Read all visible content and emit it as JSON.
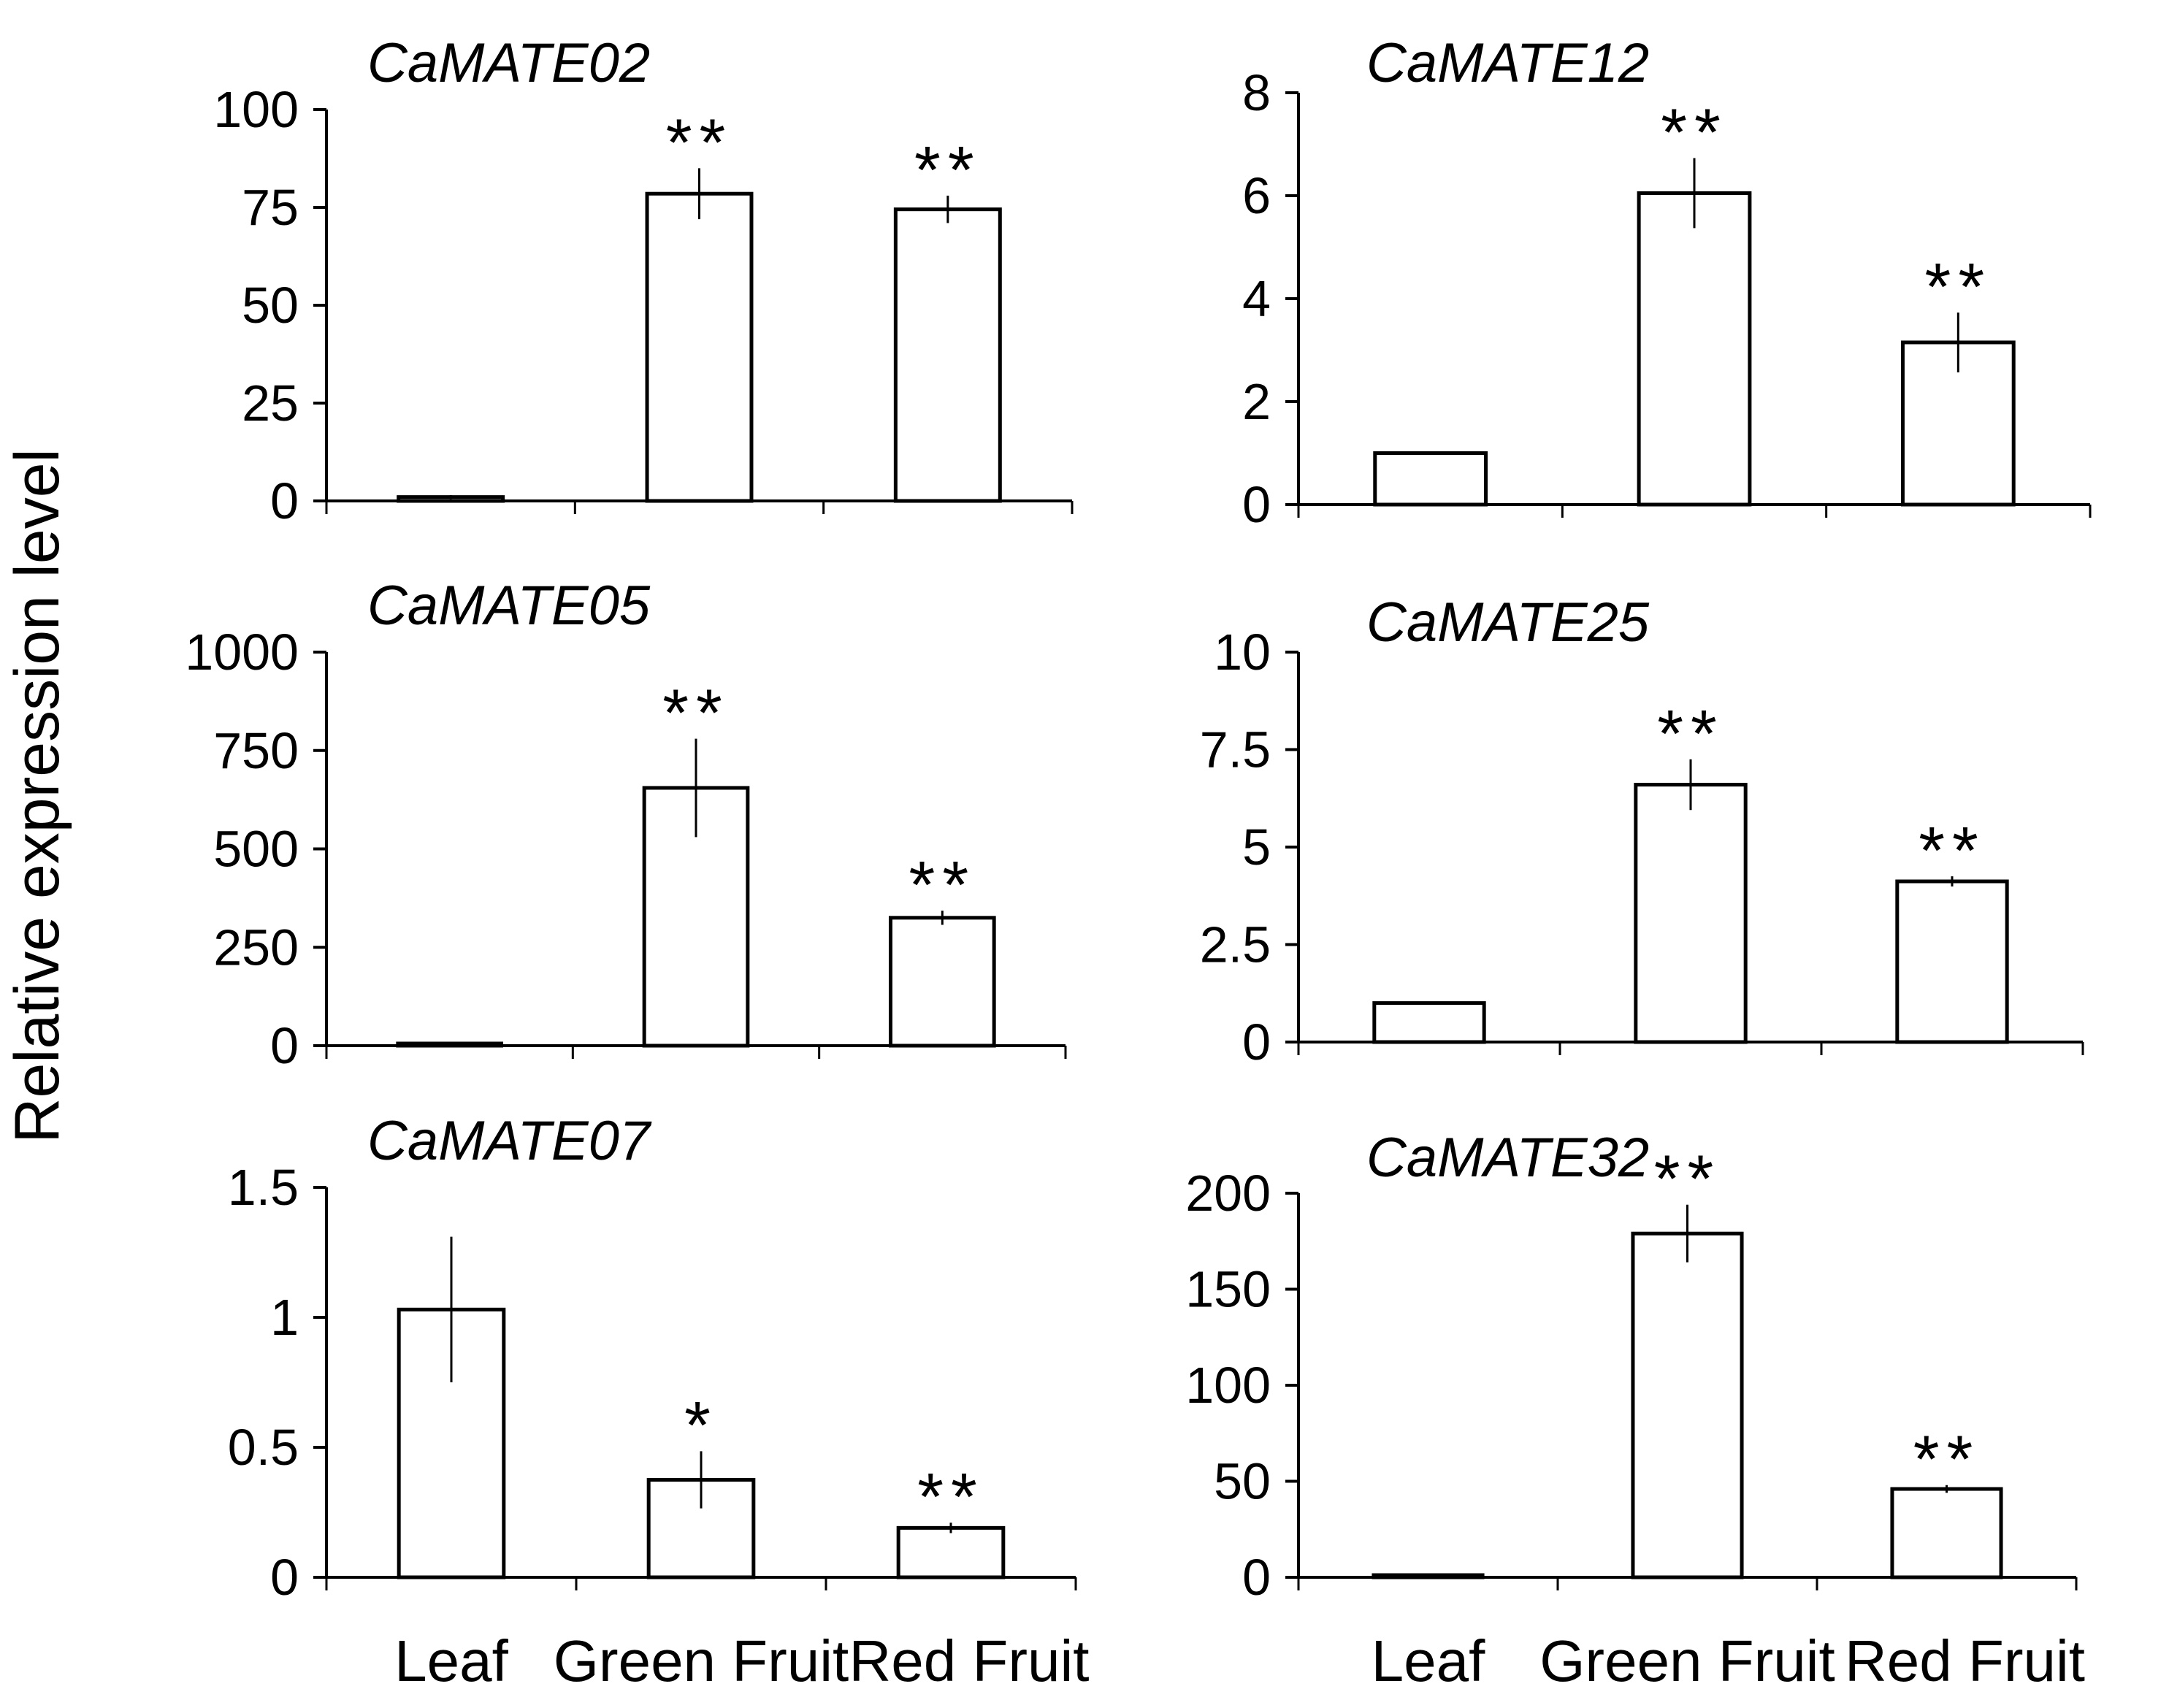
{
  "figure": {
    "ylabel": "Relative expression level",
    "categories": [
      "Leaf",
      "Green Fruit",
      "Red Fruit"
    ]
  },
  "chart_data": [
    {
      "type": "bar",
      "title": "CaMATE02",
      "categories": [
        "Leaf",
        "Green Fruit",
        "Red Fruit"
      ],
      "values": [
        1,
        78.5,
        74.5
      ],
      "errors": [
        0.5,
        6.5,
        3.5
      ],
      "significance": [
        "",
        "**",
        "**"
      ],
      "ylim": [
        0,
        100
      ],
      "yticks": [
        0,
        25,
        50,
        75,
        100
      ],
      "ytick_labels": [
        "0",
        "25",
        "50",
        "75",
        "100"
      ],
      "xlabel": "",
      "ylabel": "Relative expression level"
    },
    {
      "type": "bar",
      "title": "CaMATE12",
      "categories": [
        "Leaf",
        "Green Fruit",
        "Red Fruit"
      ],
      "values": [
        1,
        6.05,
        3.15
      ],
      "errors": [
        0,
        0.68,
        0.58
      ],
      "significance": [
        "",
        "**",
        "**"
      ],
      "ylim": [
        0,
        8
      ],
      "yticks": [
        0,
        2,
        4,
        6,
        8
      ],
      "ytick_labels": [
        "0",
        "2",
        "4",
        "6",
        "8"
      ],
      "xlabel": "",
      "ylabel": "Relative expression level"
    },
    {
      "type": "bar",
      "title": "CaMATE05",
      "categories": [
        "Leaf",
        "Green Fruit",
        "Red Fruit"
      ],
      "values": [
        1,
        655,
        325
      ],
      "errors": [
        0,
        125,
        18
      ],
      "significance": [
        "",
        "**",
        "**"
      ],
      "ylim": [
        0,
        1000
      ],
      "yticks": [
        0,
        250,
        500,
        750,
        1000
      ],
      "ytick_labels": [
        "0",
        "250",
        "500",
        "750",
        "1000"
      ],
      "xlabel": "",
      "ylabel": "Relative expression level"
    },
    {
      "type": "bar",
      "title": "CaMATE25",
      "categories": [
        "Leaf",
        "Green Fruit",
        "Red Fruit"
      ],
      "values": [
        1,
        6.6,
        4.12
      ],
      "errors": [
        0,
        0.65,
        0.13
      ],
      "significance": [
        "",
        "**",
        "**"
      ],
      "ylim": [
        0,
        10
      ],
      "yticks": [
        0,
        2.5,
        5,
        7.5,
        10
      ],
      "ytick_labels": [
        "0",
        "2.5",
        "5",
        "7.5",
        "10"
      ],
      "xlabel": "",
      "ylabel": "Relative expression level"
    },
    {
      "type": "bar",
      "title": "CaMATE07",
      "categories": [
        "Leaf",
        "Green Fruit",
        "Red Fruit"
      ],
      "values": [
        1.03,
        0.375,
        0.19
      ],
      "errors": [
        0.28,
        0.11,
        0.02
      ],
      "significance": [
        "",
        "*",
        "**"
      ],
      "ylim": [
        0,
        1.5
      ],
      "yticks": [
        0,
        0.5,
        1,
        1.5
      ],
      "ytick_labels": [
        "0",
        "0.5",
        "1",
        "1.5"
      ],
      "xlabel": "",
      "ylabel": "Relative expression level"
    },
    {
      "type": "bar",
      "title": "CaMATE32",
      "categories": [
        "Leaf",
        "Green Fruit",
        "Red Fruit"
      ],
      "values": [
        1,
        179,
        46
      ],
      "errors": [
        0,
        15,
        2
      ],
      "significance": [
        "",
        "**",
        "**"
      ],
      "ylim": [
        0,
        200
      ],
      "yticks": [
        0,
        50,
        100,
        150,
        200
      ],
      "ytick_labels": [
        "0",
        "50",
        "100",
        "150",
        "200"
      ],
      "xlabel": "",
      "ylabel": "Relative expression level"
    }
  ]
}
